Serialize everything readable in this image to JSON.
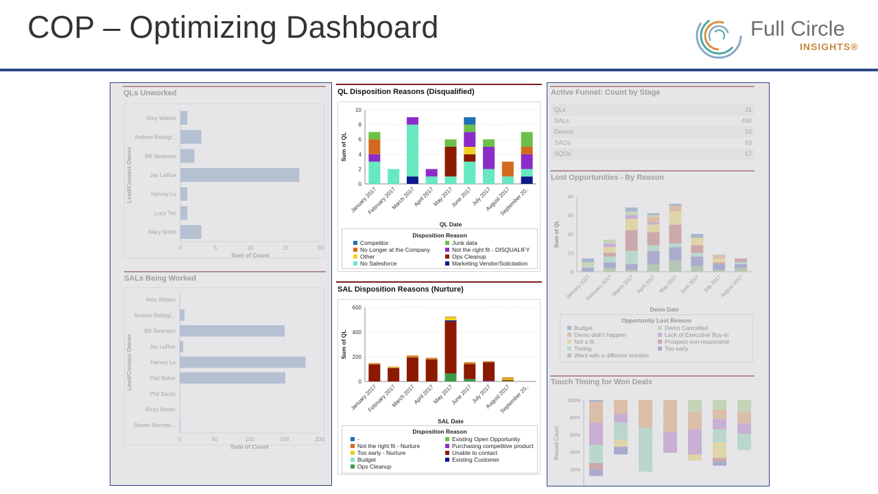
{
  "header": {
    "title": "COP – Optimizing Dashboard",
    "logo": {
      "name": "Full Circle",
      "sub": "INSIGHTS®"
    },
    "rule_color": "#2d4a8a"
  },
  "left_panel": {
    "qls_unworked": {
      "title": "QLs Unworked",
      "chart_data": {
        "type": "bar",
        "orientation": "horizontal",
        "categories": [
          "Amy Waters",
          "Andrew Battagl...",
          "Bill Swanson",
          "Jax LaRue",
          "Harvey Lu",
          "Lucy Tan",
          "Mary Smith"
        ],
        "values": [
          1,
          3,
          2,
          17,
          1,
          1,
          3
        ],
        "xlabel": "Sum of Count",
        "ylabel": "Lead/Contact Owner",
        "xlim": [
          0,
          20
        ],
        "xticks": [
          0,
          5,
          10,
          15,
          20
        ],
        "color": "#7f9cc8"
      }
    },
    "sals_being_worked": {
      "title": "SALs Being Worked",
      "chart_data": {
        "type": "bar",
        "orientation": "horizontal",
        "categories": [
          "Amy Waters",
          "Andrew Battagl...",
          "Bill Swanson",
          "Jax LaRue",
          "Harvey Lu",
          "Parl Baker",
          "Phil Sacks",
          "Ricky Martin",
          "Steven Bernste..."
        ],
        "values": [
          0,
          7,
          150,
          5,
          180,
          151,
          0,
          0,
          1
        ],
        "xlabel": "Sum of Count",
        "ylabel": "Lead/Contact Owner",
        "xlim": [
          0,
          200
        ],
        "xticks": [
          0,
          50,
          100,
          150,
          200
        ],
        "color": "#7f9cc8"
      }
    }
  },
  "center": {
    "ql_chart": {
      "title": "QL Disposition Reasons (Disqualified)",
      "chart_data": {
        "type": "bar",
        "stacked": true,
        "categories": [
          "January 2017",
          "February 2017",
          "March 2017",
          "April 2017",
          "May 2017",
          "June 2017",
          "July 2017",
          "August 2017",
          "September 20.."
        ],
        "xlabel": "QL Date",
        "ylabel": "Sum of QL",
        "ylim": [
          0,
          10
        ],
        "yticks": [
          0,
          2,
          4,
          6,
          8,
          10
        ],
        "legend_title": "Disposition Reason",
        "series": [
          {
            "name": "Competitor",
            "color": "#1f6fb4",
            "values": [
              0,
              0,
              0,
              0,
              0,
              1,
              0,
              0,
              0
            ]
          },
          {
            "name": "No Longer at the Company",
            "color": "#d2691e",
            "values": [
              2,
              0,
              0,
              0,
              0,
              0,
              0,
              2,
              1
            ]
          },
          {
            "name": "Other",
            "color": "#f0d320",
            "values": [
              0,
              0,
              0,
              0,
              0,
              1,
              0,
              0,
              0
            ]
          },
          {
            "name": "No Salesforce",
            "color": "#66e8c0",
            "values": [
              3,
              2,
              7,
              1,
              1,
              3,
              2,
              1,
              1
            ]
          },
          {
            "name": "Junk data",
            "color": "#6cc04a",
            "values": [
              1,
              0,
              0,
              0,
              1,
              1,
              1,
              0,
              2
            ]
          },
          {
            "name": "Not the right fit - DISQUALIFY",
            "color": "#8b2cc8",
            "values": [
              1,
              0,
              1,
              1,
              0,
              2,
              3,
              0,
              2
            ]
          },
          {
            "name": "Ops Cleanup",
            "color": "#8b1a00",
            "values": [
              0,
              0,
              0,
              0,
              4,
              1,
              0,
              0,
              0
            ]
          },
          {
            "name": "Marketing Vendor/Solicitation",
            "color": "#0c1a8c",
            "values": [
              0,
              0,
              1,
              0,
              0,
              0,
              0,
              0,
              1
            ]
          }
        ]
      }
    },
    "sal_chart": {
      "title": "SAL Disposition Reasons (Nurture)",
      "chart_data": {
        "type": "bar",
        "stacked": true,
        "categories": [
          "January 2017",
          "February 2017",
          "March 2017",
          "April 2017",
          "May 2017",
          "June 2017",
          "July 2017",
          "August 2017",
          "September 20.."
        ],
        "xlabel": "SAL Date",
        "ylabel": "Sum of QL",
        "ylim": [
          0,
          600
        ],
        "yticks": [
          0,
          200,
          400,
          600
        ],
        "legend_title": "Disposition Reason",
        "series": [
          {
            "name": "-",
            "color": "#1f6fb4",
            "values": [
              0,
              0,
              0,
              0,
              0,
              0,
              0,
              0,
              0
            ]
          },
          {
            "name": "Not the right fit - Nurture",
            "color": "#d2691e",
            "values": [
              5,
              3,
              12,
              8,
              5,
              10,
              8,
              8,
              0
            ]
          },
          {
            "name": "Too early - Nurture",
            "color": "#f0d320",
            "values": [
              4,
              6,
              3,
              3,
              25,
              3,
              0,
              12,
              0
            ]
          },
          {
            "name": "Budget",
            "color": "#7fe8c8",
            "values": [
              0,
              0,
              0,
              0,
              0,
              0,
              0,
              0,
              0
            ]
          },
          {
            "name": "Ops Cleanup",
            "color": "#3a9a4a",
            "values": [
              0,
              0,
              0,
              0,
              65,
              20,
              0,
              0,
              0
            ]
          },
          {
            "name": "Existing Open Opportunity",
            "color": "#6cc04a",
            "values": [
              0,
              0,
              0,
              0,
              0,
              0,
              0,
              5,
              0
            ]
          },
          {
            "name": "Purchasing competitive product",
            "color": "#8b2cc8",
            "values": [
              0,
              0,
              0,
              0,
              0,
              0,
              5,
              0,
              0
            ]
          },
          {
            "name": "Unable to contact",
            "color": "#8b1a00",
            "values": [
              140,
              110,
              195,
              180,
              420,
              122,
              150,
              8,
              0
            ]
          },
          {
            "name": "Existing Customer",
            "color": "#0c1a8c",
            "values": [
              0,
              0,
              0,
              0,
              10,
              0,
              0,
              0,
              0
            ]
          }
        ]
      }
    }
  },
  "right_panel": {
    "funnel": {
      "title": "Active Funnel: Count by Stage",
      "rows": [
        {
          "stage": "QLs",
          "count": "31"
        },
        {
          "stage": "SALs",
          "count": "496"
        },
        {
          "stage": "Demos",
          "count": "15"
        },
        {
          "stage": "SAOs",
          "count": "69"
        },
        {
          "stage": "SQOs",
          "count": "17"
        }
      ]
    },
    "lost_opps": {
      "title": "Lost Opportunities - By Reason",
      "chart_data": {
        "type": "bar",
        "stacked": true,
        "categories": [
          "January 2017",
          "February 2017",
          "March 2017",
          "April 2017",
          "May 2017",
          "June 2017",
          "July 2017",
          "August 2017"
        ],
        "xlabel": "Demo Date",
        "ylabel": "Sum of QL",
        "ylim": [
          0,
          40
        ],
        "yticks": [
          0,
          10,
          20,
          30,
          40
        ],
        "legend_title": "Opportunity Lost Reason",
        "series": [
          {
            "name": "Budget",
            "color": "#5a7fb8",
            "values": [
              2,
              0,
              2,
              1,
              1,
              2,
              0,
              0
            ]
          },
          {
            "name": "Demo didn't happen",
            "color": "#e0955a",
            "values": [
              0,
              0,
              0,
              3,
              3,
              0,
              2,
              0
            ]
          },
          {
            "name": "Not a fit",
            "color": "#ecd15a",
            "values": [
              0,
              3,
              6,
              4,
              7,
              4,
              2,
              0
            ]
          },
          {
            "name": "Timing",
            "color": "#8ed8b8",
            "values": [
              1,
              3,
              7,
              3,
              2,
              2,
              0,
              1
            ]
          },
          {
            "name": "Went with a different solution",
            "color": "#7fae78",
            "values": [
              0,
              2,
              1,
              4,
              6,
              3,
              1,
              2
            ]
          },
          {
            "name": "Demo Cancelled",
            "color": "#a8d080",
            "values": [
              2,
              2,
              2,
              1,
              0,
              0,
              0,
              0
            ]
          },
          {
            "name": "Lack of Executive Buy-in",
            "color": "#b070c8",
            "values": [
              0,
              2,
              2,
              1,
              0,
              0,
              0,
              0
            ]
          },
          {
            "name": "Prospect non-responsive",
            "color": "#b86060",
            "values": [
              0,
              2,
              11,
              7,
              10,
              4,
              1,
              2
            ]
          },
          {
            "name": "Too early",
            "color": "#6464b8",
            "values": [
              2,
              3,
              3,
              7,
              7,
              5,
              3,
              2
            ]
          }
        ]
      }
    },
    "touch_timing": {
      "title": "Touch Timing for Won Deals",
      "chart_data": {
        "type": "bar",
        "stacked": true,
        "percent": true,
        "categories": [
          "",
          "",
          "",
          "",
          "",
          "",
          ""
        ],
        "ylabel": "Record Count",
        "ylim": [
          0,
          100
        ],
        "yticks": [
          "20%",
          "40%",
          "60%",
          "80%",
          "100%"
        ],
        "series": [
          {
            "color": "#7fae78",
            "values": [
              12,
              37,
              0,
              0,
              0,
              24,
              0
            ]
          },
          {
            "color": "#6464b8",
            "values": [
              8,
              9,
              0,
              0,
              30,
              5,
              0
            ]
          },
          {
            "color": "#b86060",
            "values": [
              7,
              0,
              0,
              0,
              0,
              4,
              0
            ]
          },
          {
            "color": "#ecd15a",
            "values": [
              0,
              8,
              17,
              0,
              7,
              18,
              42
            ]
          },
          {
            "color": "#8ed8b8",
            "values": [
              21,
              20,
              51,
              39,
              0,
              15,
              19
            ]
          },
          {
            "color": "#b070c8",
            "values": [
              26,
              10,
              0,
              24,
              29,
              12,
              12
            ]
          },
          {
            "color": "#e0955a",
            "values": [
              24,
              16,
              32,
              37,
              20,
              11,
              13
            ]
          },
          {
            "color": "#a8d080",
            "values": [
              0,
              0,
              0,
              0,
              14,
              11,
              14
            ]
          },
          {
            "color": "#5a7fb8",
            "values": [
              2,
              0,
              0,
              0,
              0,
              0,
              0
            ]
          }
        ]
      }
    }
  }
}
